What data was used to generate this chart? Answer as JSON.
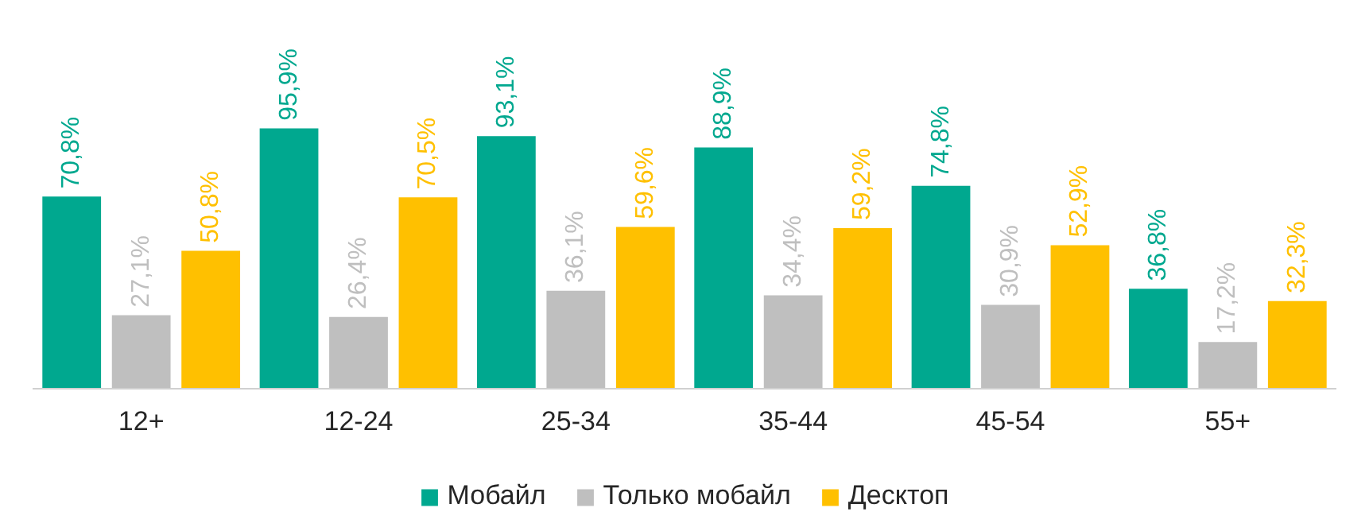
{
  "chart_data": {
    "type": "bar",
    "categories": [
      "12+",
      "12-24",
      "25-34",
      "35-44",
      "45-54",
      "55+"
    ],
    "series": [
      {
        "name": "Мобайл",
        "color": "#00a88f",
        "values": [
          70.8,
          95.9,
          93.1,
          88.9,
          74.8,
          36.8
        ],
        "value_labels": [
          "70,8%",
          "95,9%",
          "93,1%",
          "88,9%",
          "74,8%",
          "36,8%"
        ]
      },
      {
        "name": "Только мобайл",
        "color": "#bfbfbf",
        "values": [
          27.1,
          26.4,
          36.1,
          34.4,
          30.9,
          17.2
        ],
        "value_labels": [
          "27,1%",
          "26,4%",
          "36,1%",
          "34,4%",
          "30,9%",
          "17,2%"
        ]
      },
      {
        "name": "Десктоп",
        "color": "#ffc000",
        "values": [
          50.8,
          70.5,
          59.6,
          59.2,
          52.9,
          32.3
        ],
        "value_labels": [
          "50,8%",
          "70,5%",
          "59,6%",
          "59,2%",
          "52,9%",
          "32,3%"
        ]
      }
    ],
    "legend": "bottom",
    "tick_labels": "x"
  }
}
